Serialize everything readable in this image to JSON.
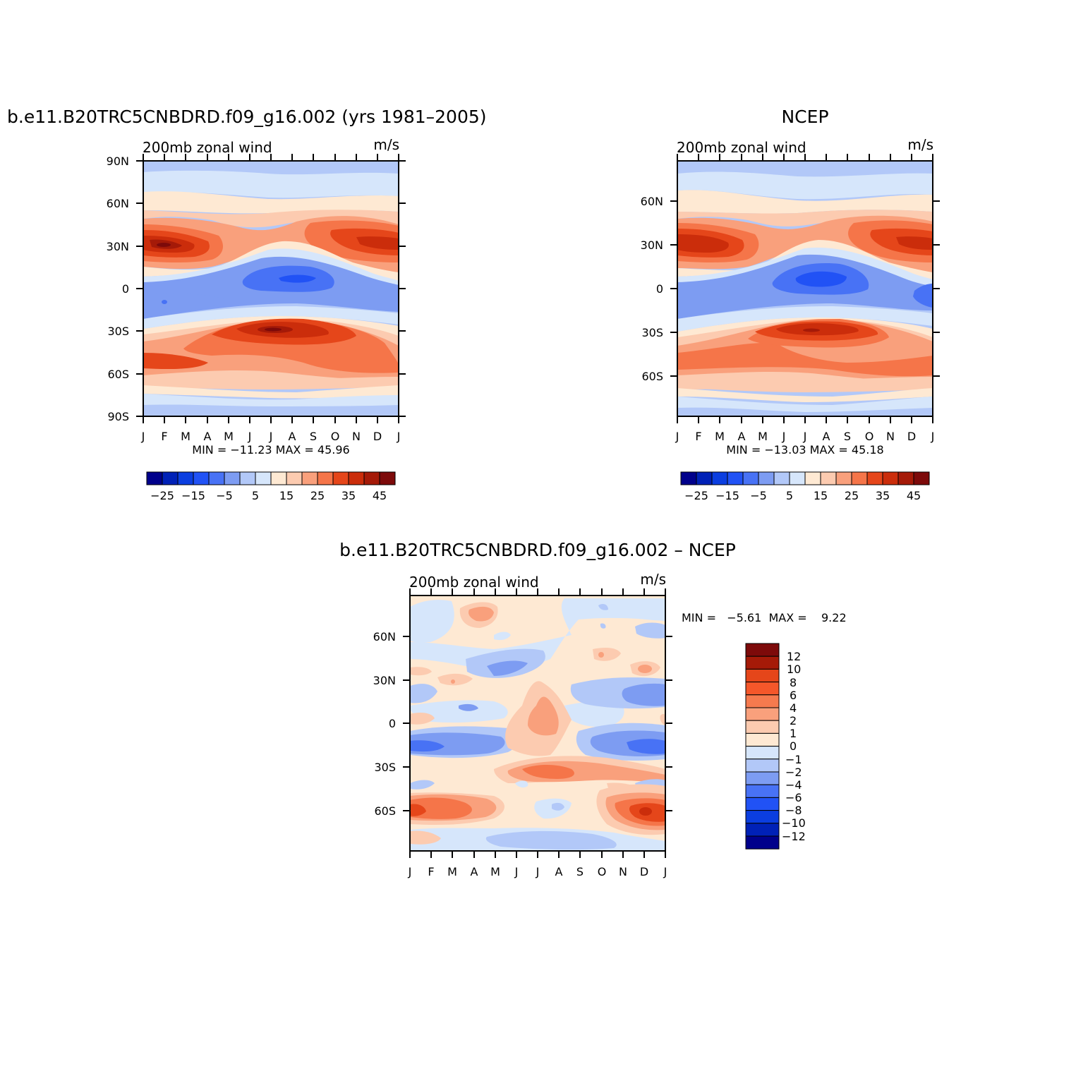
{
  "chart_data": [
    {
      "type": "heatmap",
      "title": "b.e11.B20TRC5CNBDRD.f09_g16.002 (yrs 1981–2005)",
      "left_label": "200mb zonal wind",
      "right_label": "m/s",
      "x_ticks": [
        "J",
        "F",
        "M",
        "A",
        "M",
        "J",
        "J",
        "A",
        "S",
        "O",
        "N",
        "D",
        "J"
      ],
      "y_ticks": [
        "90N",
        "60N",
        "30N",
        "0",
        "30S",
        "60S",
        "90S"
      ],
      "ylim": [
        -90,
        90
      ],
      "stats": "MIN = −11.23 MAX =  45.96",
      "colorbar": {
        "levels": [
          "−25",
          "−15",
          "−5",
          "5",
          "15",
          "25",
          "35",
          "45"
        ],
        "colors": [
          "#00008b",
          "#0021b7",
          "#0b3ee0",
          "#2152f5",
          "#4872f5",
          "#7d9cf2",
          "#b2c8f8",
          "#d6e6fb",
          "#fee9d3",
          "#fccbb0",
          "#f9a07c",
          "#f57549",
          "#e5461a",
          "#cb2d0b",
          "#a51a08",
          "#7d0a0a"
        ]
      },
      "regions": [
        {
          "lat": 80,
          "value": -1.5
        },
        {
          "lat": 65,
          "value": 2
        },
        {
          "lat": 30,
          "value": 38
        },
        {
          "lat": 5,
          "value": -8
        },
        {
          "lat": -28,
          "value": 40
        },
        {
          "lat": -55,
          "value": 32
        },
        {
          "lat": -80,
          "value": -2
        }
      ]
    },
    {
      "type": "heatmap",
      "title": "NCEP",
      "left_label": "200mb zonal wind",
      "right_label": "m/s",
      "x_ticks": [
        "J",
        "F",
        "M",
        "A",
        "M",
        "J",
        "J",
        "A",
        "S",
        "O",
        "N",
        "D",
        "J"
      ],
      "y_ticks": [
        "60N",
        "30N",
        "0",
        "30S",
        "60S"
      ],
      "ylim": [
        -90,
        90
      ],
      "stats": "MIN = −13.03 MAX =  45.18",
      "colorbar": {
        "levels": [
          "−25",
          "−15",
          "−5",
          "5",
          "15",
          "25",
          "35",
          "45"
        ],
        "colors": [
          "#00008b",
          "#0021b7",
          "#0b3ee0",
          "#2152f5",
          "#4872f5",
          "#7d9cf2",
          "#b2c8f8",
          "#d6e6fb",
          "#fee9d3",
          "#fccbb0",
          "#f9a07c",
          "#f57549",
          "#e5461a",
          "#cb2d0b",
          "#a51a08",
          "#7d0a0a"
        ]
      },
      "regions": [
        {
          "lat": 80,
          "value": -1.5
        },
        {
          "lat": 65,
          "value": 2
        },
        {
          "lat": 30,
          "value": 38
        },
        {
          "lat": 3,
          "value": -10
        },
        {
          "lat": -30,
          "value": 40
        },
        {
          "lat": -55,
          "value": 30
        },
        {
          "lat": -80,
          "value": -2
        }
      ]
    },
    {
      "type": "heatmap",
      "title": "b.e11.B20TRC5CNBDRD.f09_g16.002 – NCEP",
      "left_label": "200mb zonal wind",
      "right_label": "m/s",
      "x_ticks": [
        "J",
        "F",
        "M",
        "A",
        "M",
        "J",
        "J",
        "A",
        "S",
        "O",
        "N",
        "D",
        "J"
      ],
      "y_ticks": [
        "60N",
        "30N",
        "0",
        "30S",
        "60S"
      ],
      "ylim": [
        -90,
        90
      ],
      "stats": "MIN =   −5.61  MAX =    9.22",
      "colorbar": {
        "levels": [
          "12",
          "10",
          "8",
          "6",
          "4",
          "2",
          "1",
          "0",
          "−1",
          "−2",
          "−4",
          "−6",
          "−8",
          "−10",
          "−12"
        ],
        "colors": [
          "#7d0a0a",
          "#a51a08",
          "#e5461a",
          "#f5572a",
          "#f67a4e",
          "#f9a07c",
          "#fccbb0",
          "#fee9d3",
          "#d6e6fb",
          "#b2c8f8",
          "#7d9cf2",
          "#4872f5",
          "#2152f5",
          "#0b3ee0",
          "#0021b7",
          "#00008b"
        ]
      },
      "regions": [
        {
          "lat": 70,
          "value": 0.5
        },
        {
          "lat": 45,
          "value": -1.5
        },
        {
          "lat": 20,
          "value": 0.5
        },
        {
          "lat": 0,
          "value": 2
        },
        {
          "lat": -15,
          "value": -3
        },
        {
          "lat": -35,
          "value": 3
        },
        {
          "lat": -60,
          "value": 5
        },
        {
          "lat": -80,
          "value": -1.5
        }
      ]
    }
  ]
}
